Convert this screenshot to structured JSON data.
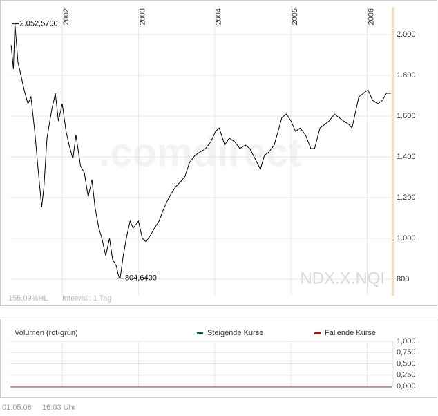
{
  "chart_data": [
    {
      "type": "line",
      "symbol": "NDX.X.NQI",
      "watermark": ".comdirect",
      "footer": [
        "155,09%HL",
        "Intervall: 1 Tag"
      ],
      "x": [
        2001.33,
        2001.36,
        2001.38,
        2001.42,
        2001.46,
        2001.5,
        2001.55,
        2001.59,
        2001.64,
        2001.68,
        2001.73,
        2001.76,
        2001.8,
        2001.86,
        2001.91,
        2001.95,
        2002.0,
        2002.05,
        2002.09,
        2002.14,
        2002.18,
        2002.24,
        2002.29,
        2002.34,
        2002.39,
        2002.43,
        2002.48,
        2002.52,
        2002.57,
        2002.62,
        2002.66,
        2002.71,
        2002.74,
        2002.76,
        2002.8,
        2002.84,
        2002.89,
        2002.93,
        2003.0,
        2003.05,
        2003.1,
        2003.16,
        2003.21,
        2003.27,
        2003.32,
        2003.38,
        2003.43,
        2003.49,
        2003.56,
        2003.61,
        2003.67,
        2003.74,
        2003.81,
        2003.88,
        2003.95,
        2004.01,
        2004.06,
        2004.13,
        2004.19,
        2004.26,
        2004.33,
        2004.4,
        2004.46,
        2004.53,
        2004.6,
        2004.65,
        2004.71,
        2004.78,
        2004.83,
        2004.88,
        2004.94,
        2005.0,
        2005.06,
        2005.12,
        2005.19,
        2005.26,
        2005.31,
        2005.38,
        2005.44,
        2005.5,
        2005.57,
        2005.63,
        2005.69,
        2005.76,
        2005.8,
        2005.85,
        2005.89,
        2005.95,
        2006.01,
        2006.07,
        2006.14,
        2006.2,
        2006.25,
        2006.31
      ],
      "values": [
        1949,
        1831,
        2052.57,
        1864,
        1797,
        1729,
        1661,
        1695,
        1525,
        1356,
        1153,
        1254,
        1492,
        1627,
        1712,
        1576,
        1661,
        1525,
        1458,
        1390,
        1508,
        1356,
        1322,
        1203,
        1288,
        1153,
        1051,
        1000,
        915,
        1000,
        898,
        864,
        814,
        804.64,
        915,
        1000,
        1085,
        1051,
        1085,
        1000,
        983,
        1017,
        1051,
        1085,
        1136,
        1186,
        1220,
        1254,
        1281,
        1305,
        1373,
        1407,
        1424,
        1441,
        1475,
        1525,
        1542,
        1458,
        1492,
        1475,
        1441,
        1458,
        1441,
        1390,
        1339,
        1407,
        1424,
        1458,
        1525,
        1593,
        1610,
        1576,
        1525,
        1542,
        1508,
        1441,
        1441,
        1542,
        1559,
        1576,
        1610,
        1593,
        1576,
        1559,
        1542,
        1627,
        1695,
        1712,
        1729,
        1678,
        1661,
        1678,
        1712,
        1712
      ],
      "color": "#000000",
      "annotations": [
        {
          "x": 2001.38,
          "value": 2052.57,
          "label": "2.052,5700"
        },
        {
          "x": 2002.76,
          "value": 804.64,
          "label": "804,6400"
        }
      ],
      "xlim": [
        2001.32,
        2006.33
      ],
      "xticks": [
        2002,
        2003,
        2004,
        2005,
        2006
      ],
      "ylim": [
        722,
        2136
      ],
      "yticks": [
        800,
        {
          "value": 1000,
          "label": "1.000"
        },
        {
          "value": 1200,
          "label": "1.200"
        },
        {
          "value": 1400,
          "label": "1.400"
        },
        {
          "value": 1600,
          "label": "1.600"
        },
        {
          "value": 1800,
          "label": "1.800"
        },
        {
          "value": 2000,
          "label": "2.000"
        }
      ],
      "grid": true
    },
    {
      "type": "bar",
      "title": "Volumen (rot-grün)",
      "series": [
        {
          "name": "Steigende Kurse",
          "color": "#006633"
        },
        {
          "name": "Fallende Kurse",
          "color": "#cc0000"
        }
      ],
      "xlim": [
        2001.32,
        2006.33
      ],
      "xticks": [
        2002,
        2003,
        2004,
        2005,
        2006
      ],
      "ylim": [
        0,
        1
      ],
      "yticks": [
        {
          "value": 0,
          "label": "0,000"
        },
        {
          "value": 0.25,
          "label": "0,250"
        },
        {
          "value": 0.5,
          "label": "0,500"
        },
        {
          "value": 0.75,
          "label": "0,750"
        },
        {
          "value": 1,
          "label": "1,000"
        }
      ],
      "grid": true
    }
  ],
  "timestamp": {
    "date": "01.05.06",
    "time": "16:03 Uhr"
  }
}
